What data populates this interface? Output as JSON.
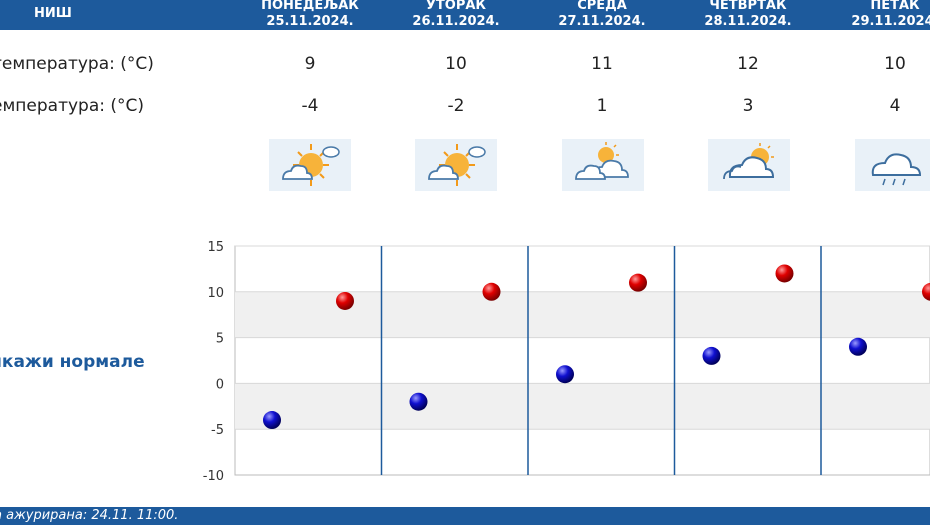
{
  "header": {
    "city": "НИШ",
    "days": [
      {
        "name": "ПОНЕДЕЉАК",
        "date": "25.11.2024."
      },
      {
        "name": "УТОРАК",
        "date": "26.11.2024."
      },
      {
        "name": "СРЕДА",
        "date": "27.11.2024."
      },
      {
        "name": "ЧЕТВРТАК",
        "date": "28.11.2024."
      },
      {
        "name": "ПЕТАК",
        "date": "29.11.2024."
      }
    ]
  },
  "rows": {
    "max_label": "температура: (°C)",
    "min_label": "емпература: (°C)",
    "weather_label": ":",
    "max": [
      "9",
      "10",
      "11",
      "12",
      "10"
    ],
    "min": [
      "-4",
      "-2",
      "1",
      "3",
      "4"
    ],
    "weather_icons": [
      "sun-cloud-icon",
      "sun-cloud-icon",
      "partly-cloudy-icon",
      "partly-cloudy-icon",
      "rain-cloud-icon"
    ]
  },
  "normals_label": "икажи нормале",
  "footer": {
    "updated": "а ажурирана:  24.11.  11:00."
  },
  "colors": {
    "accent": "#1d5a9c",
    "max_point": "#cc0000",
    "min_point": "#0000aa"
  },
  "chart_data": {
    "type": "scatter",
    "y_ticks": [
      "15",
      "10",
      "5",
      "0",
      "-5",
      "-10"
    ],
    "ylim": [
      -10,
      15
    ],
    "categories": [
      "25.11.2024.",
      "26.11.2024.",
      "27.11.2024.",
      "28.11.2024.",
      "29.11.2024."
    ],
    "series": [
      {
        "values": [
          -4,
          -2,
          1,
          3,
          4
        ]
      },
      {
        "values": [
          9,
          10,
          11,
          12,
          10
        ]
      }
    ],
    "grid": "alternating horizontal bands"
  }
}
